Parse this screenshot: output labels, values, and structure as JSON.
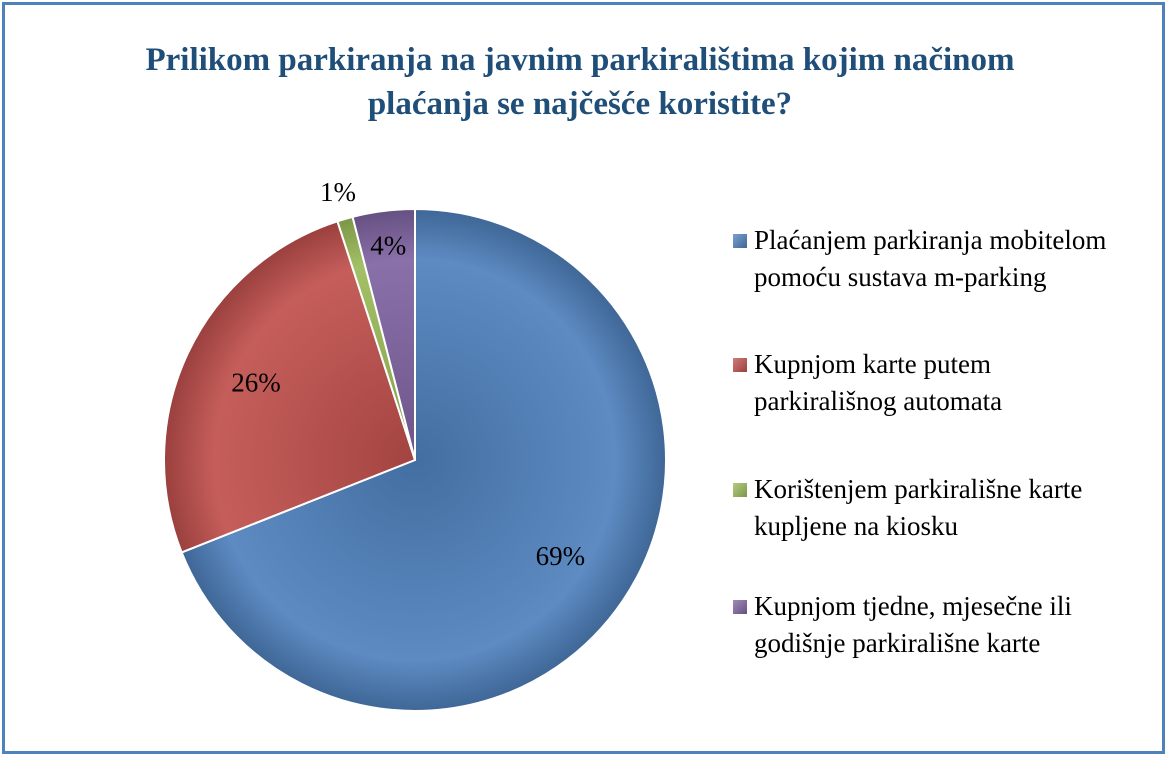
{
  "chart_data": {
    "type": "pie",
    "title": "Prilikom parkiranja na javnim parkiralištima kojim načinom plaćanja se najčešće koristite?",
    "categories": [
      "Plaćanjem parkiranja mobitelom pomoću sustava m-parking",
      "Kupnjom karte putem parkirališnog automata",
      "Korištenjem parkirališne karte kupljene na kiosku",
      "Kupnjom tjedne, mjesečne ili godišnje parkirališne karte"
    ],
    "values": [
      69,
      26,
      1,
      4
    ],
    "value_labels": [
      "69%",
      "26%",
      "1%",
      "4%"
    ],
    "colors": [
      "#4f81bd",
      "#c0504d",
      "#9bbb59",
      "#8064a2"
    ],
    "legend": "right"
  }
}
